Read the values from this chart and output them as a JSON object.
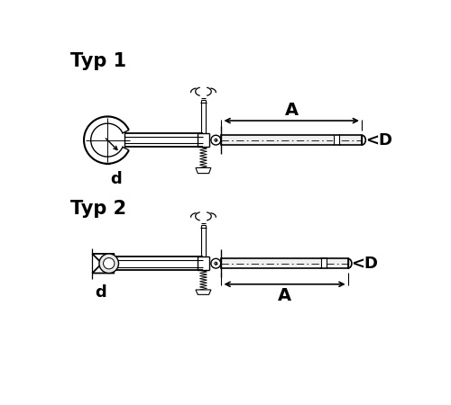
{
  "bg_color": "#ffffff",
  "line_color": "#000000",
  "title1": "Typ 1",
  "title2": "Typ 2",
  "label_A": "A",
  "label_D": "<D",
  "label_d": "d",
  "title_fontsize": 15,
  "dim_label_fontsize": 13
}
